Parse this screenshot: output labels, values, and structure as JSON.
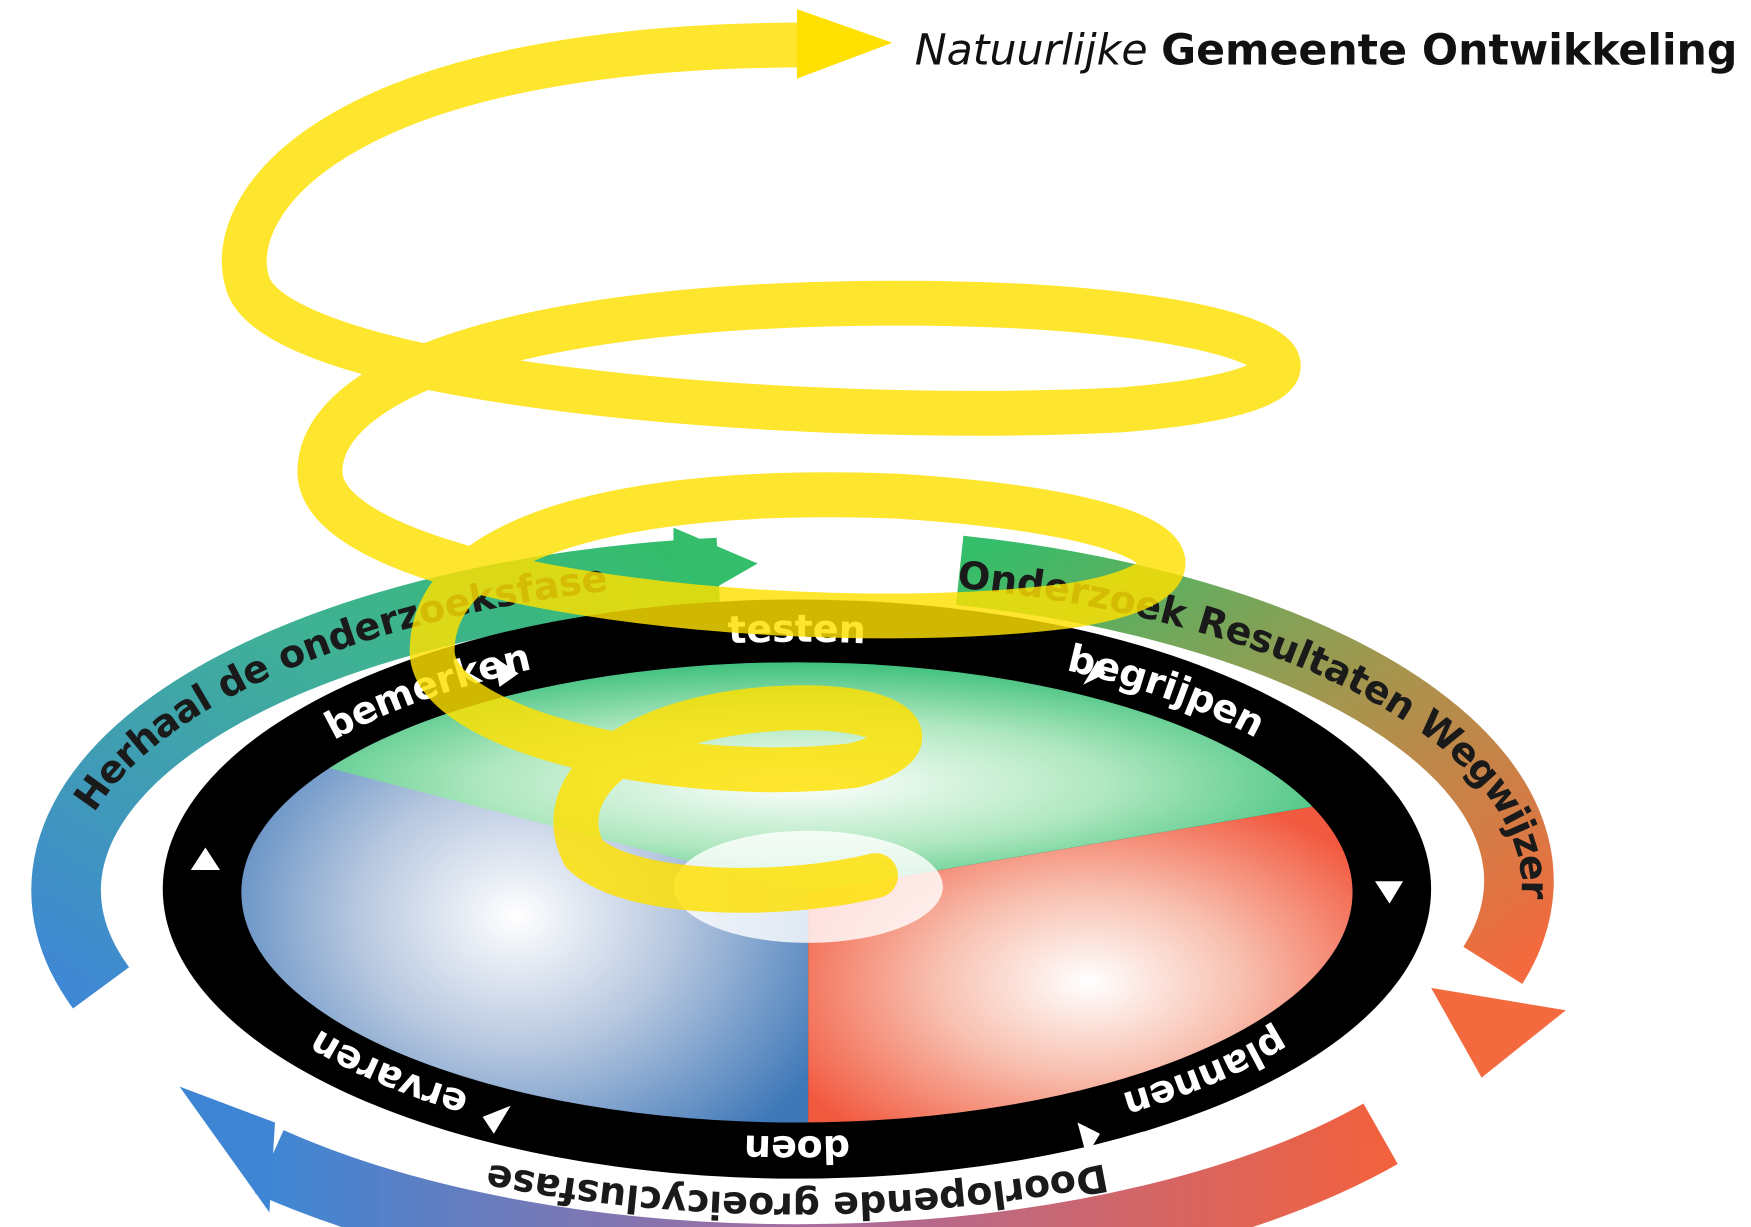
{
  "title": {
    "light": "Natuurlijke",
    "bold": "Gemeente Ontwikkeling"
  },
  "cycle": {
    "steps": [
      "testen",
      "begrijpen",
      "plannen",
      "doen",
      "ervaren",
      "bemerken"
    ]
  },
  "outer_arrows": [
    "Onderzoek Resultaten Wegwijzer",
    "Doorlopende groeicyclusfase",
    "Herhaal de onderzoeksfase"
  ]
}
